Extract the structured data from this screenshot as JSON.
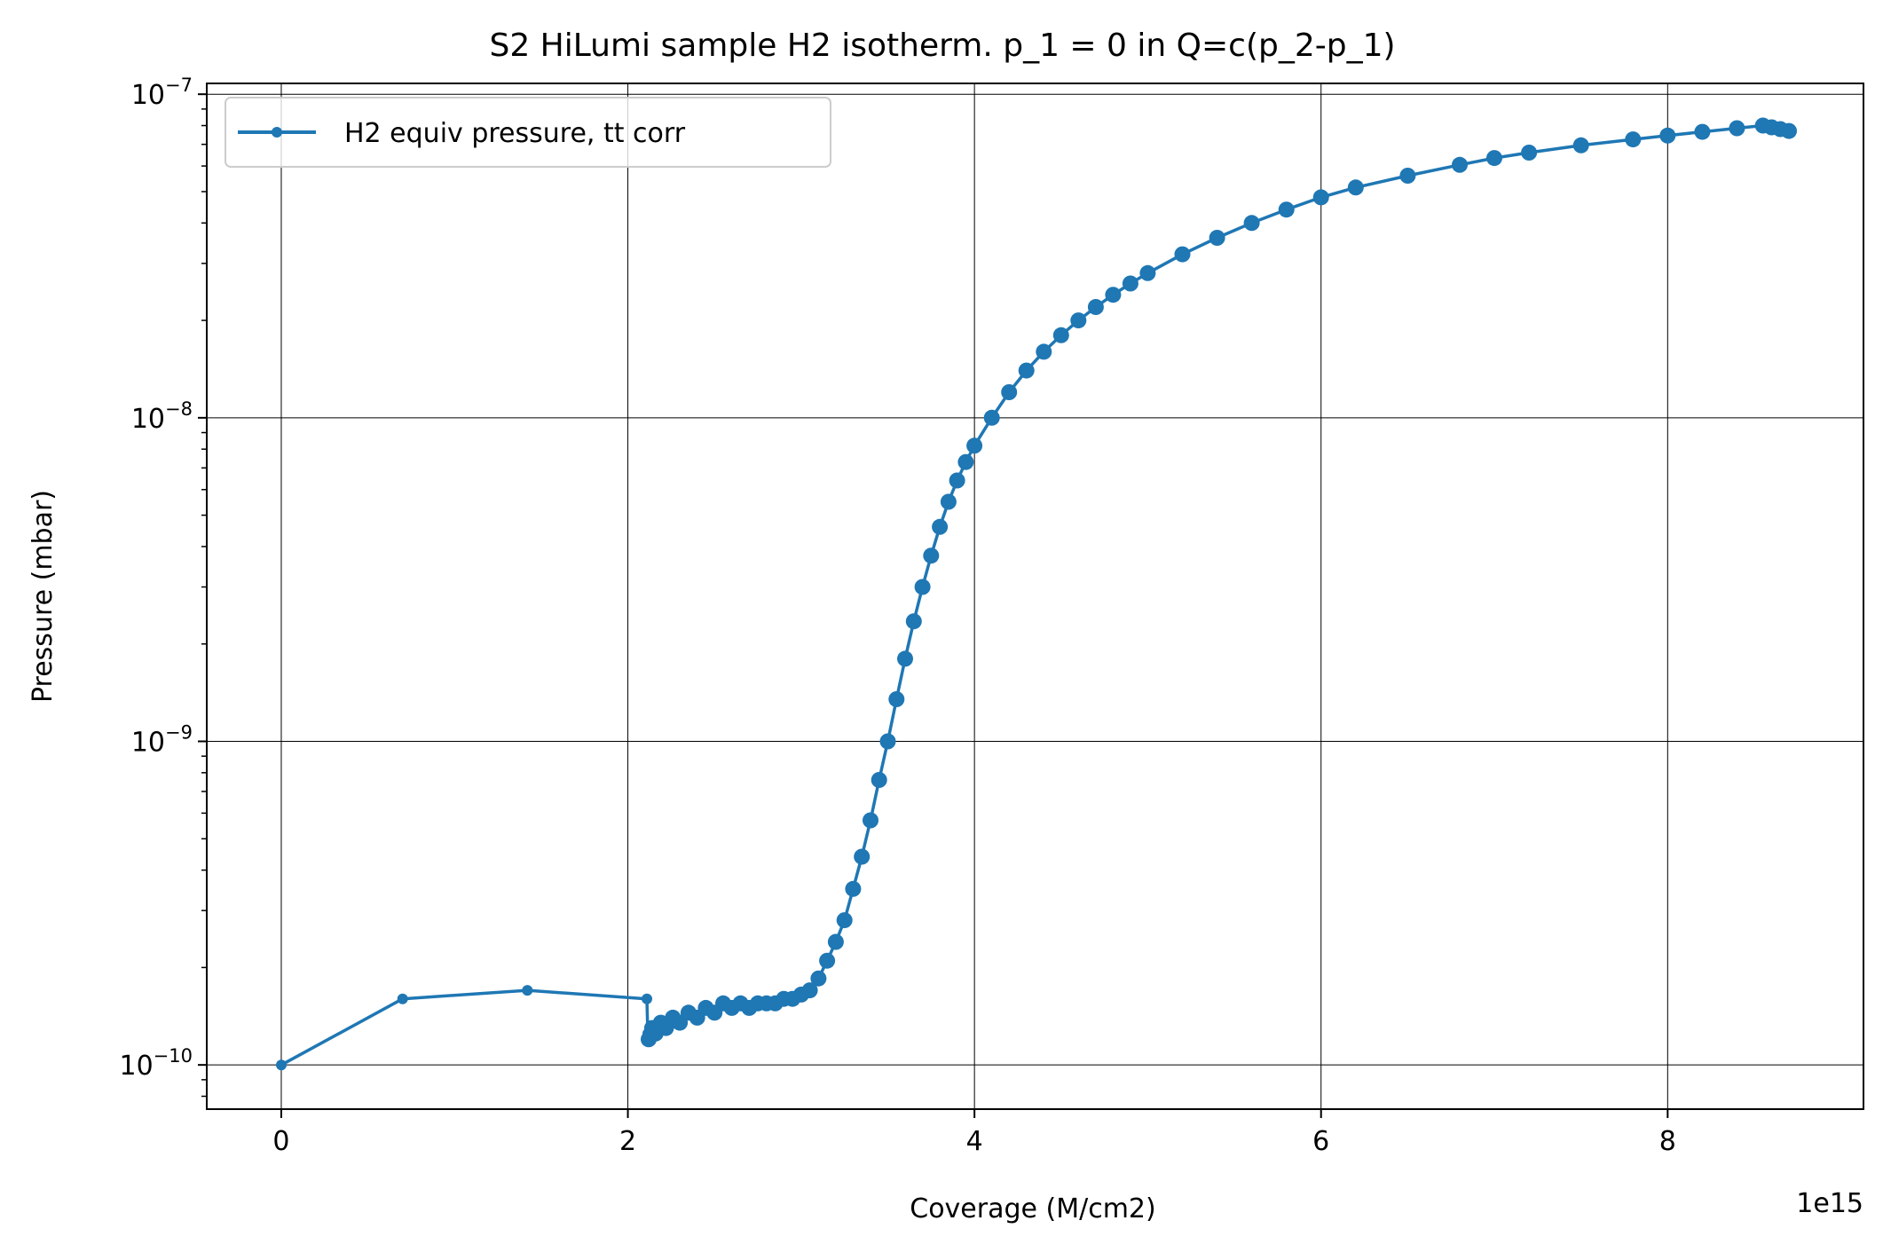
{
  "chart_data": {
    "type": "line",
    "title": "S2 HiLumi sample H2 isotherm. p_1 = 0 in Q=c(p_2-p_1)",
    "xlabel": "Coverage (M/cm2)",
    "ylabel": "Pressure (mbar)",
    "x_offset_label": "1e15",
    "x_scale": "linear",
    "y_scale": "log",
    "xlim": [
      -0.43,
      9.13
    ],
    "ylim": [
      7.3e-11,
      1.08e-07
    ],
    "x_ticks": [
      0,
      2,
      4,
      6,
      8
    ],
    "x_tick_labels": [
      "0",
      "2",
      "4",
      "6",
      "8"
    ],
    "y_ticks": [
      1e-10,
      1e-09,
      1e-08,
      1e-07
    ],
    "y_tick_labels": [
      {
        "base": "10",
        "exp": "−10"
      },
      {
        "base": "10",
        "exp": "−9"
      },
      {
        "base": "10",
        "exp": "−8"
      },
      {
        "base": "10",
        "exp": "−7"
      }
    ],
    "grid": true,
    "legend": "top-left",
    "series": [
      {
        "name": "H2 equiv pressure, tt corr",
        "color": "#1f77b4",
        "marker": "circle",
        "x": [
          0,
          0.7,
          1.42,
          2.11,
          2.115,
          2.12,
          2.14,
          2.16,
          2.19,
          2.22,
          2.26,
          2.3,
          2.35,
          2.4,
          2.45,
          2.5,
          2.55,
          2.6,
          2.65,
          2.7,
          2.75,
          2.8,
          2.85,
          2.9,
          2.95,
          3.0,
          3.05,
          3.1,
          3.15,
          3.2,
          3.25,
          3.3,
          3.35,
          3.4,
          3.45,
          3.5,
          3.55,
          3.6,
          3.65,
          3.7,
          3.75,
          3.8,
          3.85,
          3.9,
          3.95,
          4.0,
          4.1,
          4.2,
          4.3,
          4.4,
          4.5,
          4.6,
          4.7,
          4.8,
          4.9,
          5.0,
          5.2,
          5.4,
          5.6,
          5.8,
          6.0,
          6.2,
          6.5,
          6.8,
          7.0,
          7.2,
          7.5,
          7.8,
          8.0,
          8.2,
          8.4,
          8.55,
          8.6,
          8.65,
          8.7
        ],
        "y": [
          1e-10,
          1.6e-10,
          1.7e-10,
          1.6e-10,
          1.25e-10,
          1.2e-10,
          1.3e-10,
          1.25e-10,
          1.35e-10,
          1.3e-10,
          1.4e-10,
          1.35e-10,
          1.45e-10,
          1.4e-10,
          1.5e-10,
          1.45e-10,
          1.55e-10,
          1.5e-10,
          1.55e-10,
          1.5e-10,
          1.55e-10,
          1.55e-10,
          1.55e-10,
          1.6e-10,
          1.6e-10,
          1.65e-10,
          1.7e-10,
          1.85e-10,
          2.1e-10,
          2.4e-10,
          2.8e-10,
          3.5e-10,
          4.4e-10,
          5.7e-10,
          7.6e-10,
          1e-09,
          1.35e-09,
          1.8e-09,
          2.35e-09,
          3e-09,
          3.75e-09,
          4.6e-09,
          5.5e-09,
          6.4e-09,
          7.3e-09,
          8.2e-09,
          1e-08,
          1.2e-08,
          1.4e-08,
          1.6e-08,
          1.8e-08,
          2e-08,
          2.2e-08,
          2.4e-08,
          2.6e-08,
          2.8e-08,
          3.2e-08,
          3.6e-08,
          4e-08,
          4.4e-08,
          4.8e-08,
          5.15e-08,
          5.6e-08,
          6.05e-08,
          6.35e-08,
          6.6e-08,
          6.95e-08,
          7.25e-08,
          7.45e-08,
          7.65e-08,
          7.85e-08,
          8e-08,
          7.9e-08,
          7.8e-08,
          7.7e-08
        ]
      }
    ]
  }
}
